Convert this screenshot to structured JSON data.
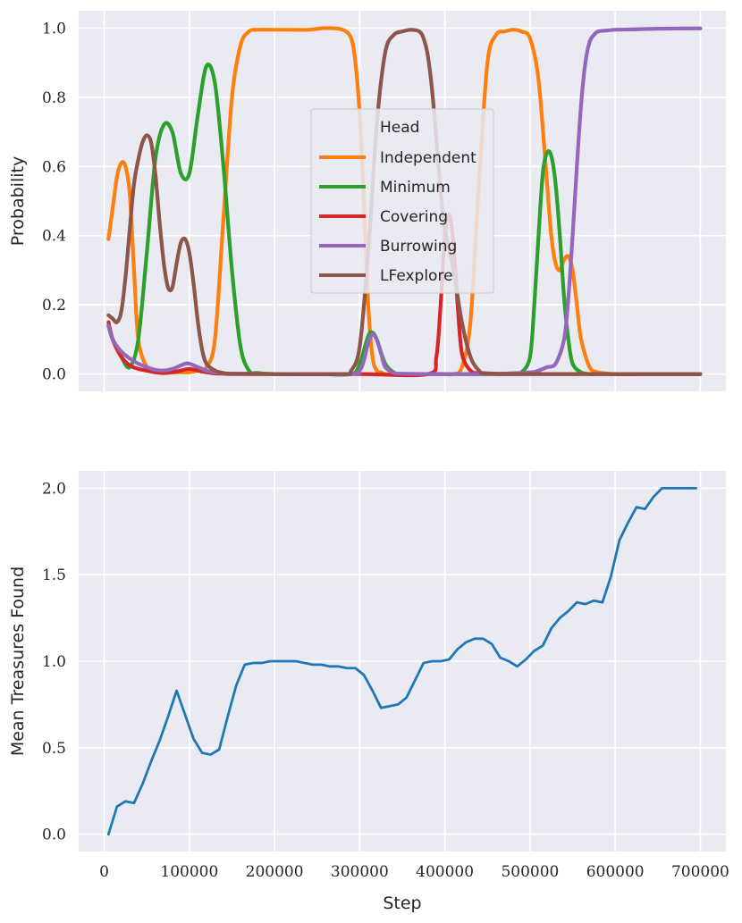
{
  "chart_data": [
    {
      "type": "line",
      "xlabel": "",
      "ylabel": "Probability",
      "xlim": [
        -30000,
        730000
      ],
      "ylim": [
        -0.05,
        1.05
      ],
      "yticks": [
        "0.0",
        "0.2",
        "0.4",
        "0.6",
        "0.8",
        "1.0"
      ],
      "ytick_values": [
        0.0,
        0.2,
        0.4,
        0.6,
        0.8,
        1.0
      ],
      "xtick_values": [
        0,
        100000,
        200000,
        300000,
        400000,
        500000,
        600000,
        700000
      ],
      "grid": true,
      "legend": {
        "title": "Head",
        "placement": "center"
      },
      "series": [
        {
          "name": "Independent",
          "color": "#ff7f0e",
          "x": [
            5000,
            10000,
            15000,
            20000,
            25000,
            30000,
            35000,
            40000,
            50000,
            60000,
            70000,
            80000,
            90000,
            100000,
            110000,
            120000,
            130000,
            140000,
            150000,
            160000,
            170000,
            180000,
            200000,
            220000,
            240000,
            260000,
            280000,
            290000,
            295000,
            300000,
            305000,
            310000,
            315000,
            320000,
            325000,
            330000,
            340000,
            350000,
            360000,
            370000,
            380000,
            390000,
            400000,
            410000,
            420000,
            430000,
            440000,
            450000,
            460000,
            470000,
            480000,
            490000,
            500000,
            510000,
            520000,
            525000,
            530000,
            535000,
            540000,
            545000,
            550000,
            555000,
            560000,
            570000,
            580000,
            600000,
            640000,
            700000
          ],
          "values": [
            0.39,
            0.48,
            0.57,
            0.61,
            0.6,
            0.52,
            0.3,
            0.1,
            0.02,
            0.01,
            0.01,
            0.005,
            0.005,
            0.005,
            0.01,
            0.02,
            0.1,
            0.45,
            0.8,
            0.95,
            0.99,
            0.995,
            0.995,
            0.995,
            0.995,
            1.0,
            0.995,
            0.97,
            0.9,
            0.75,
            0.5,
            0.2,
            0.05,
            0.01,
            0.005,
            0.0,
            0.0,
            0.0,
            0.0,
            0.0,
            0.0,
            0.0,
            0.0,
            0.0,
            0.02,
            0.15,
            0.55,
            0.9,
            0.98,
            0.99,
            0.995,
            0.99,
            0.97,
            0.85,
            0.55,
            0.4,
            0.32,
            0.3,
            0.33,
            0.34,
            0.3,
            0.2,
            0.1,
            0.02,
            0.005,
            0.0,
            0.0,
            0.0
          ]
        },
        {
          "name": "Minimum",
          "color": "#2ca02c",
          "x": [
            5000,
            10000,
            20000,
            30000,
            40000,
            50000,
            60000,
            70000,
            80000,
            90000,
            100000,
            110000,
            120000,
            130000,
            140000,
            150000,
            160000,
            170000,
            180000,
            200000,
            250000,
            290000,
            300000,
            310000,
            315000,
            320000,
            330000,
            340000,
            350000,
            400000,
            450000,
            480000,
            490000,
            500000,
            505000,
            510000,
            515000,
            520000,
            525000,
            530000,
            535000,
            540000,
            545000,
            550000,
            560000,
            570000,
            580000,
            600000,
            700000
          ],
          "values": [
            0.14,
            0.1,
            0.05,
            0.02,
            0.1,
            0.35,
            0.62,
            0.72,
            0.7,
            0.58,
            0.58,
            0.75,
            0.89,
            0.84,
            0.6,
            0.3,
            0.08,
            0.01,
            0.003,
            0.0,
            0.0,
            0.0,
            0.03,
            0.11,
            0.12,
            0.1,
            0.03,
            0.005,
            0.0,
            0.0,
            0.0,
            0.0,
            0.005,
            0.05,
            0.2,
            0.4,
            0.58,
            0.64,
            0.63,
            0.55,
            0.4,
            0.22,
            0.1,
            0.03,
            0.005,
            0.0,
            0.0,
            0.0,
            0.0
          ]
        },
        {
          "name": "Covering",
          "color": "#d62728",
          "x": [
            5000,
            10000,
            20000,
            30000,
            40000,
            50000,
            60000,
            70000,
            80000,
            90000,
            100000,
            110000,
            120000,
            130000,
            140000,
            150000,
            200000,
            300000,
            380000,
            390000,
            395000,
            400000,
            405000,
            410000,
            415000,
            420000,
            430000,
            440000,
            450000,
            500000,
            550000,
            600000,
            700000
          ],
          "values": [
            0.15,
            0.1,
            0.05,
            0.025,
            0.015,
            0.01,
            0.005,
            0.003,
            0.005,
            0.01,
            0.015,
            0.01,
            0.005,
            0.002,
            0.001,
            0.0,
            0.0,
            0.0,
            0.0,
            0.05,
            0.2,
            0.4,
            0.46,
            0.38,
            0.2,
            0.06,
            0.01,
            0.002,
            0.0,
            0.0,
            0.0,
            0.0,
            0.0
          ]
        },
        {
          "name": "Burrowing",
          "color": "#9467bd",
          "x": [
            5000,
            10000,
            20000,
            30000,
            40000,
            50000,
            60000,
            70000,
            80000,
            90000,
            95000,
            100000,
            110000,
            120000,
            130000,
            140000,
            150000,
            200000,
            290000,
            300000,
            305000,
            310000,
            315000,
            320000,
            325000,
            330000,
            340000,
            350000,
            400000,
            450000,
            500000,
            510000,
            520000,
            530000,
            540000,
            545000,
            550000,
            555000,
            560000,
            565000,
            570000,
            575000,
            580000,
            590000,
            600000,
            620000,
            650000,
            700000
          ],
          "values": [
            0.14,
            0.1,
            0.065,
            0.045,
            0.03,
            0.02,
            0.012,
            0.01,
            0.015,
            0.025,
            0.03,
            0.03,
            0.02,
            0.01,
            0.005,
            0.002,
            0.001,
            0.0,
            0.0,
            0.01,
            0.04,
            0.09,
            0.115,
            0.1,
            0.06,
            0.02,
            0.004,
            0.001,
            0.0,
            0.0,
            0.005,
            0.01,
            0.02,
            0.03,
            0.1,
            0.22,
            0.4,
            0.6,
            0.78,
            0.9,
            0.96,
            0.98,
            0.99,
            0.993,
            0.995,
            0.996,
            0.998,
            0.999
          ]
        },
        {
          "name": "LFexplore",
          "color": "#8c564b",
          "x": [
            5000,
            10000,
            15000,
            20000,
            25000,
            30000,
            35000,
            40000,
            45000,
            50000,
            55000,
            60000,
            65000,
            70000,
            75000,
            80000,
            85000,
            90000,
            95000,
            100000,
            105000,
            110000,
            115000,
            120000,
            130000,
            140000,
            150000,
            200000,
            280000,
            290000,
            300000,
            310000,
            320000,
            330000,
            340000,
            350000,
            360000,
            370000,
            375000,
            380000,
            385000,
            390000,
            395000,
            400000,
            410000,
            420000,
            430000,
            440000,
            450000,
            500000,
            600000,
            700000
          ],
          "values": [
            0.17,
            0.16,
            0.15,
            0.18,
            0.28,
            0.42,
            0.55,
            0.62,
            0.67,
            0.69,
            0.67,
            0.58,
            0.44,
            0.32,
            0.25,
            0.25,
            0.32,
            0.38,
            0.39,
            0.35,
            0.26,
            0.15,
            0.07,
            0.03,
            0.01,
            0.003,
            0.001,
            0.0,
            0.0,
            0.01,
            0.08,
            0.35,
            0.72,
            0.93,
            0.98,
            0.99,
            0.995,
            0.99,
            0.97,
            0.92,
            0.82,
            0.68,
            0.53,
            0.42,
            0.3,
            0.15,
            0.05,
            0.01,
            0.002,
            0.0,
            0.0,
            0.0
          ]
        }
      ]
    },
    {
      "type": "line",
      "xlabel": "Step",
      "ylabel": "Mean Treasures Found",
      "xlim": [
        -30000,
        730000
      ],
      "ylim": [
        -0.1,
        2.1
      ],
      "yticks": [
        "0.0",
        "0.5",
        "1.0",
        "1.5",
        "2.0"
      ],
      "ytick_values": [
        0.0,
        0.5,
        1.0,
        1.5,
        2.0
      ],
      "xticks": [
        "0",
        "100000",
        "200000",
        "300000",
        "400000",
        "500000",
        "600000",
        "700000"
      ],
      "xtick_values": [
        0,
        100000,
        200000,
        300000,
        400000,
        500000,
        600000,
        700000
      ],
      "grid": true,
      "series": [
        {
          "color": "#1f77b4",
          "x": [
            5000,
            15000,
            25000,
            35000,
            45000,
            55000,
            65000,
            75000,
            85000,
            95000,
            105000,
            115000,
            125000,
            135000,
            145000,
            155000,
            165000,
            175000,
            185000,
            195000,
            205000,
            215000,
            225000,
            235000,
            245000,
            255000,
            265000,
            275000,
            285000,
            295000,
            305000,
            315000,
            325000,
            335000,
            345000,
            355000,
            365000,
            375000,
            385000,
            395000,
            405000,
            415000,
            425000,
            435000,
            445000,
            455000,
            465000,
            475000,
            485000,
            495000,
            505000,
            515000,
            525000,
            535000,
            545000,
            555000,
            565000,
            575000,
            585000,
            595000,
            605000,
            615000,
            625000,
            635000,
            645000,
            655000,
            665000,
            675000,
            685000,
            695000
          ],
          "values": [
            0.0,
            0.16,
            0.19,
            0.18,
            0.29,
            0.42,
            0.54,
            0.68,
            0.83,
            0.69,
            0.55,
            0.47,
            0.46,
            0.49,
            0.68,
            0.86,
            0.98,
            0.99,
            0.99,
            1.0,
            1.0,
            1.0,
            1.0,
            0.99,
            0.98,
            0.98,
            0.97,
            0.97,
            0.96,
            0.96,
            0.92,
            0.83,
            0.73,
            0.74,
            0.75,
            0.79,
            0.89,
            0.99,
            1.0,
            1.0,
            1.01,
            1.07,
            1.11,
            1.13,
            1.13,
            1.1,
            1.02,
            1.0,
            0.97,
            1.01,
            1.06,
            1.09,
            1.19,
            1.25,
            1.29,
            1.34,
            1.33,
            1.35,
            1.34,
            1.49,
            1.7,
            1.8,
            1.89,
            1.88,
            1.95,
            2.0,
            2.0,
            2.0,
            2.0,
            2.0
          ]
        }
      ]
    }
  ]
}
